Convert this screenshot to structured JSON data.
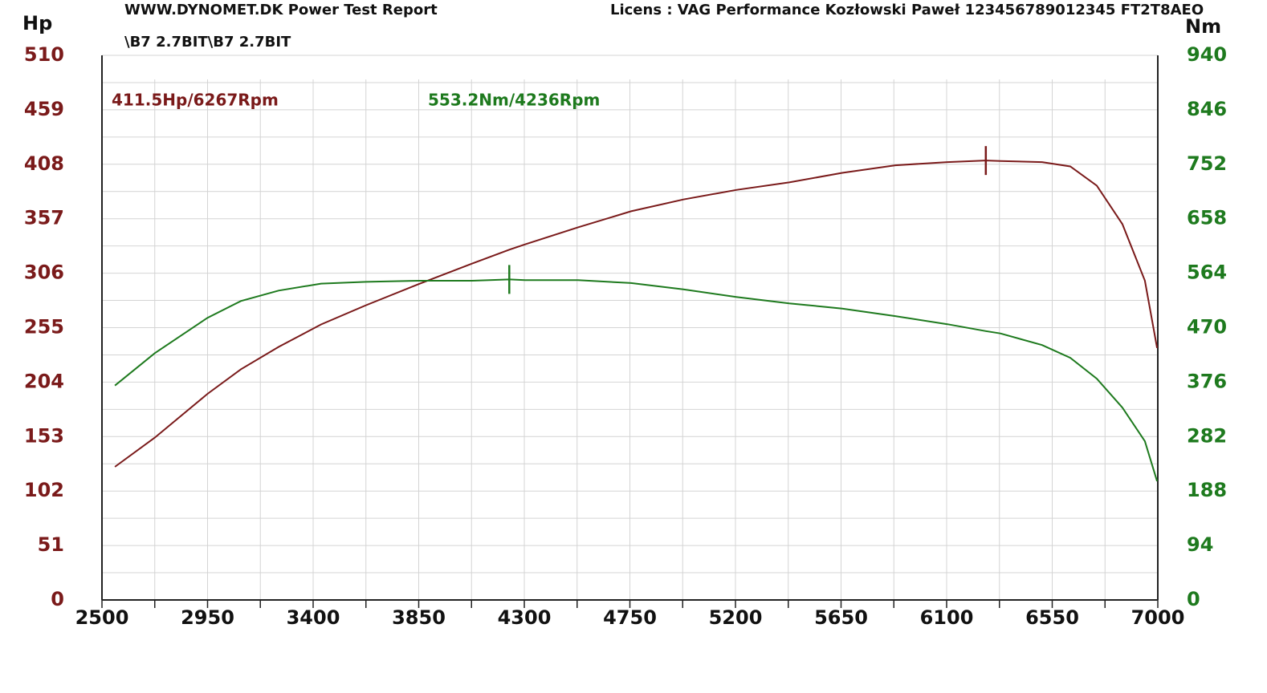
{
  "chart_data": {
    "type": "line",
    "title": "WWW.DYNOMET.DK  Power Test Report",
    "license": "Licens :  VAG Performance Kozłowski Paweł 123456789012345 FT2T8AEO",
    "subtitle": "\\B7 2.7BIT\\B7 2.7BIT",
    "y_label": "Hp",
    "y2_label": "Nm",
    "x": [
      2555,
      2725,
      2950,
      3092,
      3253,
      3434,
      3626,
      3852,
      4078,
      4236,
      4303,
      4529,
      4755,
      4978,
      5203,
      5429,
      5655,
      5881,
      6103,
      6267,
      6329,
      6507,
      6627,
      6740,
      6849,
      6945,
      6997
    ],
    "series": [
      {
        "name": "Hp",
        "color": "#7a1a1a",
        "annotation": "411.5Hp/6267Rpm",
        "values": [
          124.7,
          152,
          193,
          216,
          237,
          258,
          276,
          296,
          315,
          328,
          333,
          349,
          364,
          375,
          384,
          391,
          400,
          407,
          410,
          411.5,
          411,
          410,
          406,
          388,
          352,
          299,
          236
        ]
      },
      {
        "name": "Nm",
        "color": "#1e7a1e",
        "axis": "y2",
        "annotation": "553.2Nm/4236Rpm",
        "values": [
          370,
          426,
          487,
          516,
          534,
          546,
          549,
          551,
          551,
          553.2,
          552,
          552,
          547,
          536,
          523,
          512,
          503,
          490,
          476,
          464,
          460,
          440,
          418,
          382,
          332,
          274,
          205
        ]
      }
    ],
    "xlim": [
      2500,
      7000
    ],
    "xticks": [
      2500,
      2950,
      3400,
      3850,
      4300,
      4750,
      5200,
      5650,
      6100,
      6550,
      7000
    ],
    "ylim": [
      0,
      510
    ],
    "yticks": [
      0,
      51,
      102,
      153,
      204,
      255,
      306,
      357,
      408,
      459,
      510
    ],
    "y2lim": [
      0,
      940
    ],
    "y2ticks": [
      0,
      94,
      188,
      282,
      376,
      470,
      564,
      658,
      752,
      846,
      940
    ],
    "grid": true
  }
}
